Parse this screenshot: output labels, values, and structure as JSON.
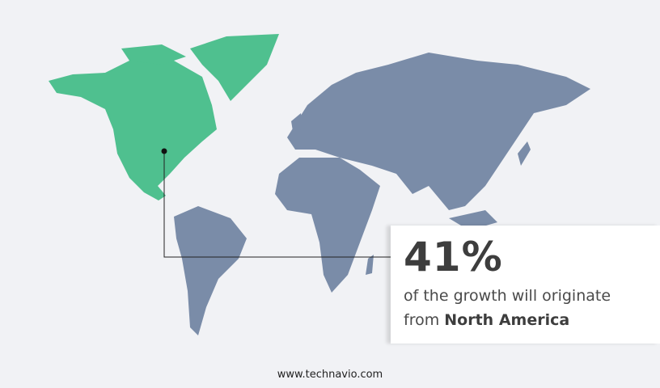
{
  "colors": {
    "highlight": "#4fc08f",
    "other": "#7a8ca8",
    "background": "#f1f2f5"
  },
  "callout": {
    "percent": "41%",
    "line1": "of the growth will originate",
    "line2_prefix": "from ",
    "region": "North America"
  },
  "footer": {
    "url": "www.technavio.com"
  }
}
